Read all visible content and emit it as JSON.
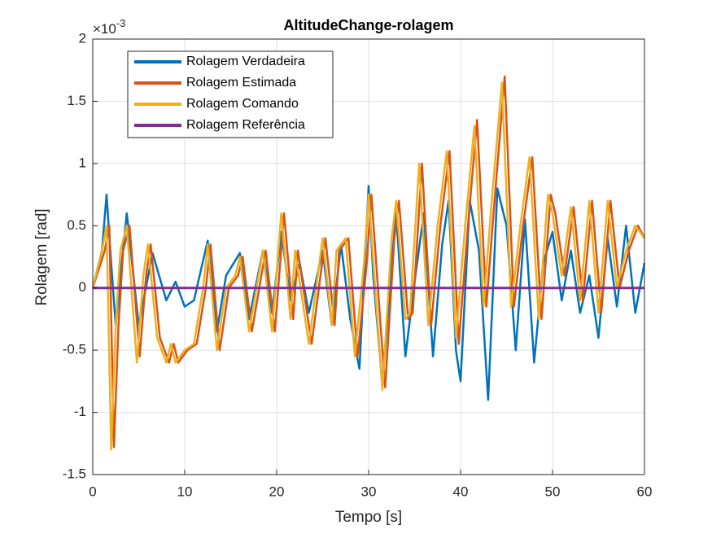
{
  "chart_data": {
    "type": "line",
    "title": "AltitudeChange-rolagem",
    "xlabel": "Tempo [s]",
    "ylabel": "Rolagem [rad]",
    "y_exponent_base": "×10",
    "y_exponent": "-3",
    "xlim": [
      0,
      60
    ],
    "xticks": [
      0,
      10,
      20,
      30,
      40,
      50,
      60
    ],
    "ylim": [
      -1.5,
      2
    ],
    "yticks": [
      -1.5,
      -1,
      -0.5,
      0,
      0.5,
      1,
      1.5,
      2
    ],
    "grid": true,
    "legend": "upper left",
    "series": [
      {
        "name": "Rolagem Verdadeira",
        "color": "#0072bd",
        "x": [
          0,
          1,
          1.5,
          2,
          2.5,
          3,
          3.7,
          5,
          6.5,
          8,
          9,
          10,
          11,
          12.5,
          13.5,
          14.5,
          16,
          17,
          18.5,
          19.5,
          20.5,
          21.5,
          22.5,
          23.5,
          25,
          26,
          27,
          28,
          29,
          30,
          30.5,
          31.5,
          32.5,
          33,
          34,
          35,
          36,
          37,
          38,
          38.7,
          39.5,
          40,
          41,
          42,
          43,
          44,
          45,
          46,
          47,
          48,
          49,
          50,
          51,
          52,
          53,
          54,
          55,
          56,
          57,
          58,
          59,
          60
        ],
        "values": [
          0,
          0.3,
          0.75,
          0.2,
          -0.3,
          0.1,
          0.6,
          -0.3,
          0.28,
          -0.1,
          0.05,
          -0.15,
          -0.1,
          0.38,
          -0.35,
          0.1,
          0.28,
          -0.25,
          0.3,
          -0.2,
          0.45,
          -0.1,
          0.2,
          -0.2,
          0.3,
          -0.3,
          0.35,
          -0.25,
          -0.65,
          0.82,
          0.1,
          -0.78,
          0.2,
          0.6,
          -0.55,
          0.05,
          0.6,
          -0.55,
          0.35,
          0.7,
          -0.5,
          -0.75,
          0.7,
          0.3,
          -0.9,
          0.8,
          0.5,
          -0.5,
          0.55,
          -0.6,
          0.2,
          0.45,
          -0.1,
          0.3,
          -0.2,
          0.1,
          -0.4,
          0.4,
          -0.15,
          0.5,
          -0.2,
          0.2
        ]
      },
      {
        "name": "Rolagem Estimada",
        "color": "#d95319",
        "x": [
          0,
          1.3,
          1.8,
          2.3,
          2.8,
          3.3,
          4,
          5.1,
          5.8,
          6.3,
          7.3,
          8.3,
          8.8,
          9.3,
          10.3,
          11.3,
          12.3,
          12.8,
          13.8,
          14.8,
          15.8,
          16.3,
          17.3,
          18.8,
          19.8,
          20.8,
          21.8,
          22.3,
          23.8,
          25.3,
          26.3,
          26.8,
          27.8,
          28.8,
          29.8,
          30.3,
          31.3,
          31.8,
          32.8,
          33.3,
          34.3,
          34.8,
          35.8,
          36.8,
          37.8,
          38.8,
          39.8,
          40.8,
          41.8,
          42.8,
          43.8,
          44.8,
          45.8,
          46.8,
          47.8,
          48.8,
          49.8,
          50.3,
          51.3,
          52.3,
          53.3,
          54.3,
          55.3,
          56.3,
          57.3,
          58.3,
          59.3,
          60
        ],
        "values": [
          0,
          0.3,
          0.5,
          -1.28,
          -0.3,
          0.3,
          0.5,
          -0.55,
          0.1,
          0.35,
          -0.4,
          -0.6,
          -0.45,
          -0.6,
          -0.5,
          -0.45,
          0,
          0.35,
          -0.5,
          0,
          0.1,
          0.25,
          -0.35,
          0.3,
          -0.35,
          0.6,
          -0.25,
          0.3,
          -0.45,
          0.4,
          -0.3,
          0.3,
          0.4,
          -0.55,
          0.2,
          0.75,
          -0.3,
          -0.8,
          0.4,
          0.7,
          -0.25,
          -0.2,
          1.0,
          -0.3,
          0.5,
          1.1,
          -0.45,
          0.5,
          1.35,
          -0.15,
          0.8,
          1.7,
          -0.15,
          0.5,
          1.05,
          -0.25,
          0.75,
          0.6,
          0.1,
          0.65,
          -0.1,
          0.7,
          -0.2,
          0.7,
          0,
          0.3,
          0.5,
          0.4
        ]
      },
      {
        "name": "Rolagem Comando",
        "color": "#edb120",
        "x": [
          0,
          1,
          1.5,
          2,
          2.5,
          3,
          3.7,
          4.8,
          5.5,
          6,
          7,
          8,
          8.5,
          9,
          10,
          11,
          12,
          12.5,
          13.5,
          14.5,
          15.5,
          16,
          17,
          18.5,
          19.5,
          20.5,
          21.5,
          22,
          23.5,
          25,
          26,
          26.5,
          27.5,
          28.5,
          29.5,
          30,
          31,
          31.5,
          32.5,
          33,
          34,
          34.5,
          35.5,
          36.5,
          37.5,
          38.5,
          39.5,
          40.5,
          41.5,
          42.5,
          43.5,
          44.5,
          45.5,
          46.5,
          47.5,
          48.5,
          49.5,
          50,
          51,
          52,
          53,
          54,
          55,
          56,
          57,
          58,
          59,
          60
        ],
        "values": [
          0,
          0.3,
          0.5,
          -1.3,
          -0.3,
          0.3,
          0.5,
          -0.6,
          0.1,
          0.35,
          -0.4,
          -0.6,
          -0.45,
          -0.6,
          -0.5,
          -0.45,
          0,
          0.35,
          -0.5,
          0,
          0.1,
          0.25,
          -0.35,
          0.3,
          -0.35,
          0.6,
          -0.25,
          0.3,
          -0.45,
          0.4,
          -0.3,
          0.3,
          0.4,
          -0.55,
          0.2,
          0.75,
          -0.3,
          -0.82,
          0.4,
          0.7,
          -0.25,
          -0.2,
          1.0,
          -0.3,
          0.5,
          1.1,
          -0.4,
          0.5,
          1.3,
          -0.15,
          0.8,
          1.65,
          -0.15,
          0.5,
          1.05,
          -0.25,
          0.75,
          0.6,
          0.1,
          0.65,
          -0.1,
          0.7,
          -0.2,
          0.7,
          0,
          0.3,
          0.5,
          0.4
        ]
      },
      {
        "name": "Rolagem Referência",
        "color": "#7e2f8e",
        "x": [
          0,
          60
        ],
        "values": [
          0,
          0
        ]
      }
    ]
  }
}
